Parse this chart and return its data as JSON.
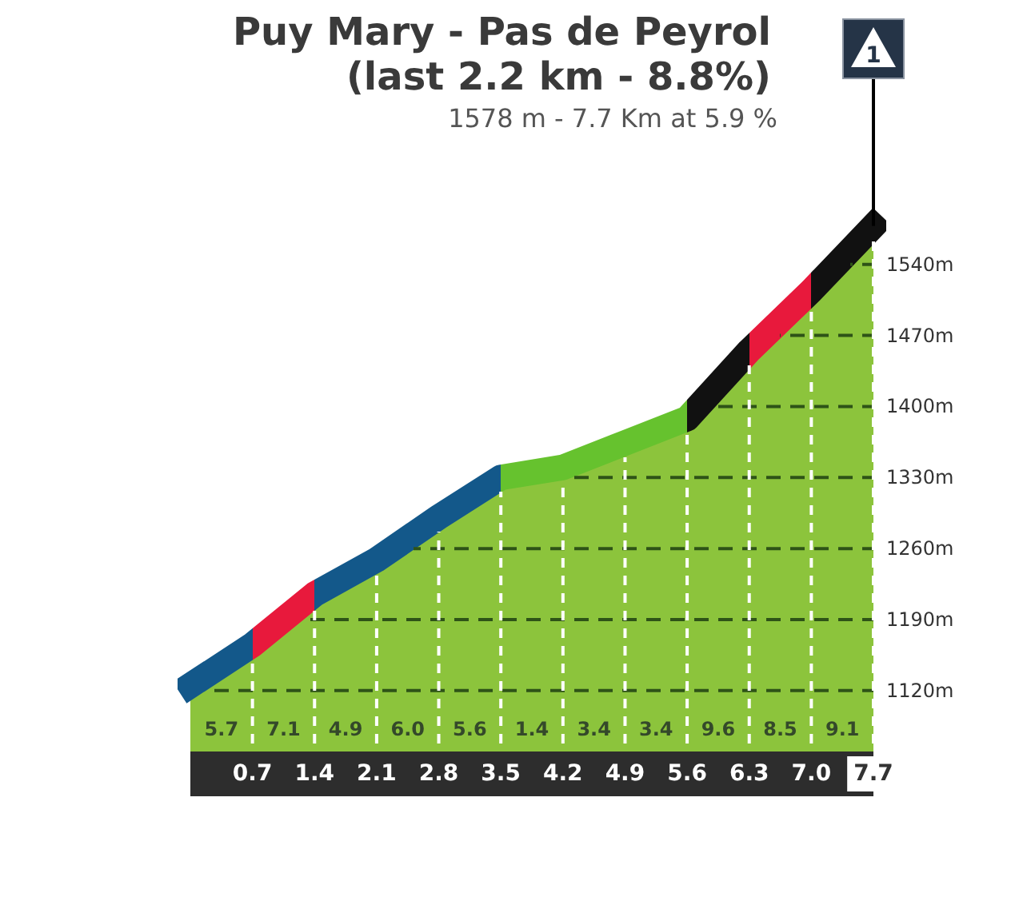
{
  "chart_data": {
    "type": "area",
    "title": "Puy Mary - Pas de Peyrol\n(last 2.2 km - 8.8%)",
    "subtitle": "1578 m - 7.7 Km at 5.9 %",
    "x": [
      0,
      0.7,
      1.4,
      2.1,
      2.8,
      3.5,
      4.2,
      4.9,
      5.6,
      6.3,
      7,
      7.7
    ],
    "series": [
      {
        "color": "#8cc43c",
        "colors": [
          "#13588a",
          "#e8193c",
          "#13588a",
          "#13588a",
          "#13588a",
          "#66c22e",
          "#66c22e",
          "#66c22e",
          "#111111",
          "#e8193c",
          "#111111",
          "#111111"
        ],
        "values": [
          1125,
          1165,
          1215,
          1249,
          1291,
          1330,
          1340,
          1364,
          1388,
          1455,
          1514,
          1578
        ]
      }
    ],
    "xlim": [
      0,
      7.7
    ],
    "xticks": [
      0.7,
      1.4,
      2.1,
      2.8,
      3.5,
      4.2,
      4.9,
      5.6,
      6.3,
      {
        "value": 7,
        "label": "7.0"
      },
      7.7
    ],
    "ylim": [
      1060,
      1580
    ],
    "yticks": [
      {
        "value": 1120,
        "label": "1120m"
      },
      {
        "value": 1190,
        "label": "1190m"
      },
      {
        "value": 1260,
        "label": "1260m"
      },
      {
        "value": 1330,
        "label": "1330m"
      },
      {
        "value": 1400,
        "label": "1400m"
      },
      {
        "value": 1470,
        "label": "1470m"
      },
      {
        "value": 1540,
        "label": "1540m"
      }
    ],
    "grid": true,
    "annotations": [
      "5.7",
      "7.1",
      "4.9",
      "6.0",
      "5.6",
      "1.4",
      "3.4",
      "3.4",
      "9.6",
      "8.5",
      "9.1",
      {
        "text": "1",
        "x": 7.7,
        "y": 1578
      }
    ]
  }
}
